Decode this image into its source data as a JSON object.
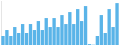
{
  "chart_data": {
    "type": "bar",
    "values": [
      3,
      5,
      3,
      6,
      4,
      7,
      4,
      7,
      5,
      8,
      5,
      9,
      6,
      9,
      6,
      10,
      7,
      11,
      7,
      12,
      8,
      13,
      0.3,
      0.1,
      3,
      10,
      4,
      12,
      6,
      14
    ],
    "color": "#5ab4e8",
    "ylim": [
      0,
      14.7
    ],
    "grid": false,
    "tick_labels": false
  }
}
